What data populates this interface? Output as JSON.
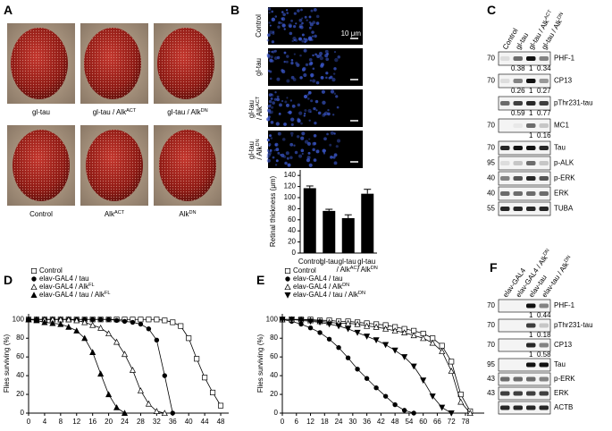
{
  "panel_labels": [
    "A",
    "B",
    "C",
    "D",
    "E",
    "F"
  ],
  "panel_a": {
    "top": [
      "gl-tau",
      "gl-tau / AlkACT",
      "gl-tau / AlkDN"
    ],
    "bottom": [
      "Control",
      "AlkACT",
      "AlkDN"
    ]
  },
  "panel_b": {
    "rows": [
      "Control",
      "gl-tau",
      "gl-tau / AlkACT",
      "gl-tau / AlkDN"
    ],
    "scale_bar": "10 μm"
  },
  "panel_c": {
    "lanes": [
      "Control",
      "gl-tau",
      "gl-tau / AlkACT",
      "gl-tau / AlkDN"
    ],
    "rows": [
      {
        "label": "PHF-1",
        "mw": "70",
        "quant": [
          null,
          "0.38",
          "1",
          "0.34"
        ]
      },
      {
        "label": "CP13",
        "mw": "70",
        "quant": [
          null,
          "0.26",
          "1",
          "0.27"
        ]
      },
      {
        "label": "pThr231-tau",
        "mw": null,
        "quant": [
          null,
          "0.59",
          "1",
          "0.77"
        ]
      },
      {
        "label": "MC1",
        "mw": "70",
        "quant": [
          null,
          null,
          "1",
          "0.16"
        ]
      },
      {
        "label": "Tau",
        "mw": "70",
        "quant": null
      },
      {
        "label": "p-ALK",
        "mw": "95",
        "quant": null
      },
      {
        "label": "p-ERK",
        "mw": "40",
        "quant": null
      },
      {
        "label": "ERK",
        "mw": "40",
        "quant": null
      },
      {
        "label": "TUBA",
        "mw": "55",
        "quant": null
      }
    ]
  },
  "panel_f": {
    "lanes": [
      "elav-GAL4",
      "elav-GAL4 / AlkDN",
      "elav-tau",
      "elav-tau / AlkDN"
    ],
    "rows": [
      {
        "label": "PHF-1",
        "mw": "70",
        "quant": [
          null,
          null,
          "1",
          "0.44"
        ]
      },
      {
        "label": "pThr231-tau",
        "mw": "70",
        "quant": [
          null,
          null,
          "1",
          "0.18"
        ]
      },
      {
        "label": "CP13",
        "mw": "70",
        "quant": [
          null,
          null,
          "1",
          "0.58"
        ]
      },
      {
        "label": "Tau",
        "mw": "95",
        "quant": null
      },
      {
        "label": "p-ERK",
        "mw": "43",
        "quant": null
      },
      {
        "label": "ERK",
        "mw": "43",
        "quant": null
      },
      {
        "label": "ACTB",
        "mw": null,
        "quant": null
      }
    ]
  },
  "chart_data": [
    {
      "type": "bar",
      "ylabel": "Retinal thickness (μm)",
      "categories": [
        "Control",
        "gl-tau",
        "gl-tau / AlkACT",
        "gl-tau / AlkDN"
      ],
      "values": [
        117,
        76,
        63,
        107
      ],
      "errors": [
        4,
        3,
        6,
        8
      ],
      "color": "#000000",
      "ylim": [
        0,
        150
      ],
      "yticks": [
        0,
        20,
        40,
        60,
        80,
        100,
        120,
        140
      ]
    },
    {
      "type": "line",
      "ylabel": "Flies surviving (%)",
      "x": [
        0,
        2,
        4,
        6,
        8,
        10,
        12,
        14,
        16,
        18,
        20,
        22,
        24,
        26,
        28,
        30,
        32,
        34,
        36,
        38,
        40,
        42,
        44,
        46,
        48
      ],
      "xlim": [
        0,
        50
      ],
      "xticks": [
        0,
        4,
        8,
        12,
        16,
        20,
        24,
        28,
        32,
        36,
        40,
        44,
        48
      ],
      "ylim": [
        0,
        106
      ],
      "yticks": [
        0,
        20,
        40,
        60,
        80,
        100
      ],
      "series": [
        {
          "name": "Control",
          "color": "#000000",
          "marker": "square-open",
          "values": [
            100,
            100,
            100,
            100,
            100,
            100,
            100,
            100,
            100,
            100,
            100,
            100,
            100,
            100,
            100,
            100,
            100,
            99,
            97,
            93,
            80,
            58,
            38,
            22,
            8
          ]
        },
        {
          "name": "elav-GAL4 / tau",
          "color": "#000000",
          "marker": "circle",
          "values": [
            100,
            100,
            100,
            100,
            100,
            100,
            100,
            100,
            100,
            100,
            100,
            99,
            98,
            97,
            95,
            90,
            78,
            40,
            0,
            null,
            null,
            null,
            null,
            null,
            null
          ]
        },
        {
          "name": "elav-GAL4 / AlkFL",
          "color": "#000000",
          "marker": "triangle-open",
          "values": [
            100,
            100,
            100,
            100,
            100,
            100,
            99,
            97,
            94,
            91,
            85,
            76,
            63,
            46,
            24,
            10,
            2,
            0,
            null,
            null,
            null,
            null,
            null,
            null,
            null
          ]
        },
        {
          "name": "elav-GAL4 / tau / AlkFL",
          "color": "#000000",
          "marker": "triangle",
          "values": [
            100,
            99,
            97,
            96,
            95,
            92,
            88,
            80,
            65,
            42,
            20,
            6,
            0,
            null,
            null,
            null,
            null,
            null,
            null,
            null,
            null,
            null,
            null,
            null,
            null
          ]
        }
      ]
    },
    {
      "type": "line",
      "ylabel": "Flies surviving (%)",
      "x": [
        0,
        4,
        8,
        12,
        16,
        20,
        24,
        28,
        32,
        36,
        40,
        44,
        48,
        52,
        56,
        60,
        64,
        68,
        72,
        76,
        80
      ],
      "xlim": [
        0,
        86
      ],
      "xticks": [
        0,
        6,
        12,
        18,
        24,
        30,
        36,
        42,
        48,
        54,
        60,
        66,
        72,
        78
      ],
      "ylim": [
        0,
        106
      ],
      "yticks": [
        0,
        20,
        40,
        60,
        80,
        100
      ],
      "series": [
        {
          "name": "Control",
          "color": "#000000",
          "marker": "square-open",
          "values": [
            100,
            100,
            100,
            100,
            99,
            99,
            98,
            98,
            97,
            96,
            95,
            94,
            92,
            90,
            88,
            85,
            80,
            72,
            55,
            20,
            2
          ]
        },
        {
          "name": "elav-GAL4 / tau",
          "color": "#000000",
          "marker": "circle",
          "values": [
            100,
            98,
            95,
            91,
            86,
            79,
            70,
            59,
            47,
            37,
            27,
            18,
            9,
            3,
            0,
            null,
            null,
            null,
            null,
            null,
            null
          ]
        },
        {
          "name": "elav-GAL4 / AlkDN",
          "color": "#000000",
          "marker": "triangle-open",
          "values": [
            100,
            100,
            100,
            99,
            98,
            97,
            96,
            96,
            95,
            93,
            92,
            90,
            88,
            86,
            83,
            80,
            75,
            66,
            45,
            12,
            0
          ]
        },
        {
          "name": "elav-GAL4 / tau / AlkDN",
          "color": "#000000",
          "marker": "triangle-down",
          "values": [
            100,
            100,
            99,
            98,
            97,
            95,
            93,
            90,
            86,
            82,
            78,
            73,
            67,
            60,
            50,
            35,
            18,
            6,
            0,
            null,
            null
          ]
        }
      ]
    }
  ]
}
